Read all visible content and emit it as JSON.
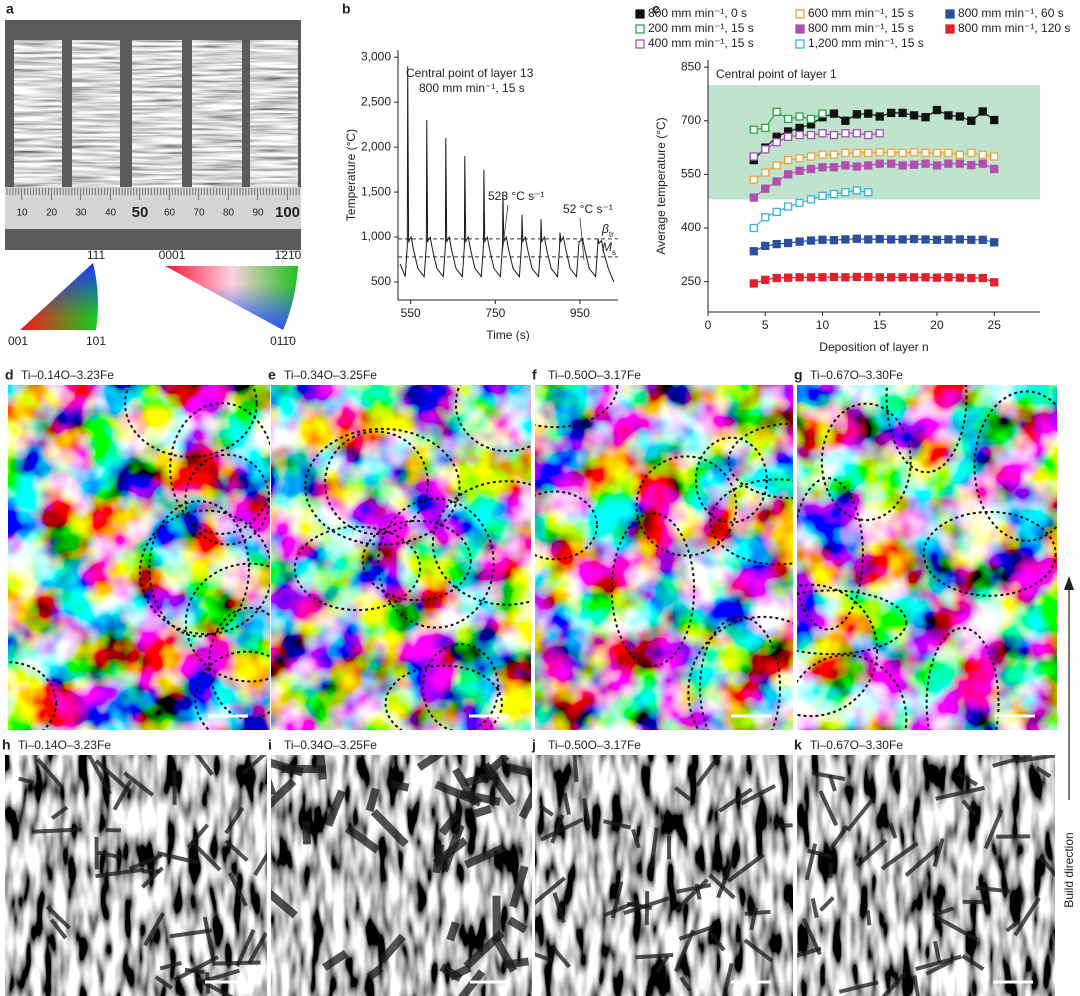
{
  "panel_a": {
    "label": "a",
    "ruler_numbers": [
      10,
      20,
      30,
      40,
      50,
      60,
      70,
      80,
      90,
      100
    ],
    "ipf_cubic": [
      "111",
      "001",
      "101"
    ],
    "ipf_hex": [
      "0001",
      "1̄21̄0",
      "011̄0"
    ]
  },
  "chart_data": [
    {
      "type": "line",
      "label": "b",
      "xlabel": "Time (s)",
      "ylabel": "Temperature (°C)",
      "color": "#1a1a1a",
      "xlim": [
        520,
        1040
      ],
      "xticks": [
        550,
        750,
        950
      ],
      "ylim": [
        300,
        3080
      ],
      "yticks": [
        500,
        {
          "value": 1000,
          "label": "1,000"
        },
        {
          "value": 1500,
          "label": "1,500"
        },
        {
          "value": 2000,
          "label": "2,000"
        },
        {
          "value": 2500,
          "label": "2,500"
        },
        {
          "value": 3000,
          "label": "3,000"
        }
      ],
      "annotations": [
        "Central point of layer 13",
        "800 mm min⁻¹, 15 s",
        "523 °C s⁻¹",
        "52 °C s⁻¹"
      ],
      "hlines": [
        {
          "value": 980,
          "symbol": "β",
          "subscript": "tr"
        },
        {
          "value": 780,
          "symbol": "M",
          "subscript": "s"
        }
      ],
      "x": [
        525,
        537,
        542,
        543,
        545,
        551,
        557,
        567,
        582,
        587,
        588,
        590,
        596,
        602,
        612,
        627,
        632,
        633,
        635,
        641,
        647,
        657,
        672,
        677,
        678,
        680,
        686,
        692,
        702,
        717,
        722,
        723,
        725,
        731,
        737,
        747,
        762,
        767,
        768,
        770,
        776,
        782,
        792,
        807,
        812,
        813,
        815,
        821,
        827,
        837,
        852,
        857,
        858,
        860,
        866,
        872,
        882,
        897,
        902,
        903,
        905,
        911,
        917,
        927,
        942,
        947,
        948,
        950,
        956,
        962,
        972,
        987,
        992,
        993,
        995,
        1001,
        1007,
        1017,
        1030
      ],
      "values": [
        700,
        560,
        900,
        2900,
        950,
        1000,
        850,
        650,
        560,
        900,
        2300,
        950,
        1000,
        850,
        650,
        560,
        900,
        2100,
        950,
        1000,
        850,
        650,
        560,
        900,
        1900,
        950,
        1000,
        850,
        650,
        560,
        900,
        1750,
        950,
        1000,
        850,
        650,
        560,
        900,
        1500,
        950,
        1000,
        850,
        650,
        560,
        900,
        1250,
        950,
        1000,
        850,
        650,
        560,
        900,
        1200,
        950,
        1000,
        850,
        650,
        560,
        900,
        1050,
        950,
        1000,
        850,
        650,
        560,
        900,
        950,
        950,
        980,
        850,
        650,
        560,
        900,
        980,
        930,
        960,
        820,
        650,
        500
      ]
    },
    {
      "type": "scatter",
      "label": "c",
      "xlabel": "Deposition of layer n",
      "ylabel": "Average temperature (°C)",
      "annotation": "Central point of layer 1",
      "shaded_range": [
        480,
        800
      ],
      "shade_color": "#bfe3cd",
      "xlim": [
        0,
        29
      ],
      "xticks": [
        0,
        5,
        10,
        15,
        20,
        25
      ],
      "ylim": [
        165,
        870
      ],
      "yticks": [
        250,
        400,
        550,
        700,
        850
      ],
      "series": [
        {
          "name": "800 mm min⁻¹, 0 s",
          "color": "#111111",
          "filled": true,
          "x": [
            4,
            5,
            6,
            7,
            8,
            9,
            10,
            11,
            12,
            13,
            14,
            15,
            16,
            17,
            18,
            19,
            20,
            21,
            22,
            23,
            24,
            25
          ],
          "values": [
            590,
            625,
            655,
            670,
            680,
            690,
            710,
            720,
            700,
            718,
            720,
            712,
            722,
            722,
            715,
            710,
            730,
            715,
            712,
            700,
            726,
            702
          ]
        },
        {
          "name": "200 mm min⁻¹, 15 s",
          "color": "#2da44e",
          "filled": false,
          "x": [
            4,
            5,
            6,
            7,
            8,
            9,
            10
          ],
          "values": [
            675,
            680,
            725,
            705,
            712,
            705,
            720
          ]
        },
        {
          "name": "400 mm min⁻¹, 15 s",
          "color": "#a054b0",
          "filled": false,
          "x": [
            4,
            5,
            6,
            7,
            8,
            9,
            10,
            11,
            12,
            13,
            14,
            15
          ],
          "values": [
            600,
            620,
            640,
            655,
            660,
            660,
            665,
            660,
            665,
            665,
            660,
            665
          ]
        },
        {
          "name": "600 mm min⁻¹, 15 s",
          "color": "#eea43a",
          "filled": false,
          "x": [
            4,
            5,
            6,
            7,
            8,
            9,
            10,
            11,
            12,
            13,
            14,
            15,
            16,
            17,
            18,
            19,
            20,
            21,
            22,
            23,
            24,
            25
          ],
          "values": [
            535,
            555,
            575,
            590,
            595,
            600,
            605,
            605,
            610,
            610,
            610,
            612,
            610,
            610,
            612,
            610,
            610,
            610,
            605,
            610,
            605,
            600
          ]
        },
        {
          "name": "800 mm min⁻¹, 15 s",
          "color": "#b04fb0",
          "filled": true,
          "x": [
            4,
            5,
            6,
            7,
            8,
            9,
            10,
            11,
            12,
            13,
            14,
            15,
            16,
            17,
            18,
            19,
            20,
            21,
            22,
            23,
            24,
            25
          ],
          "values": [
            485,
            510,
            530,
            550,
            560,
            565,
            570,
            570,
            575,
            572,
            575,
            580,
            580,
            575,
            577,
            580,
            575,
            580,
            580,
            576,
            580,
            565
          ]
        },
        {
          "name": "1,200 mm min⁻¹, 15 s",
          "color": "#3ab3d9",
          "filled": false,
          "x": [
            4,
            5,
            6,
            7,
            8,
            9,
            10,
            11,
            12,
            13,
            14
          ],
          "values": [
            400,
            430,
            445,
            460,
            470,
            480,
            490,
            495,
            500,
            505,
            500
          ]
        },
        {
          "name": "800 mm min⁻¹, 60 s",
          "color": "#2c4f9e",
          "filled": true,
          "x": [
            4,
            5,
            6,
            7,
            8,
            9,
            10,
            11,
            12,
            13,
            14,
            15,
            16,
            17,
            18,
            19,
            20,
            21,
            22,
            23,
            24,
            25
          ],
          "values": [
            335,
            350,
            355,
            358,
            362,
            365,
            367,
            366,
            368,
            370,
            368,
            369,
            368,
            368,
            369,
            368,
            367,
            368,
            368,
            367,
            367,
            360
          ]
        },
        {
          "name": "800 mm min⁻¹, 120 s",
          "color": "#e0202a",
          "filled": true,
          "x": [
            4,
            5,
            6,
            7,
            8,
            9,
            10,
            11,
            12,
            13,
            14,
            15,
            16,
            17,
            18,
            19,
            20,
            21,
            22,
            23,
            24,
            25
          ],
          "values": [
            245,
            255,
            260,
            261,
            262,
            262,
            262,
            263,
            262,
            263,
            263,
            262,
            262,
            262,
            262,
            262,
            261,
            262,
            261,
            260,
            260,
            248
          ]
        }
      ]
    }
  ],
  "micrographs": [
    {
      "label": "d",
      "title": "Ti–0.14O–3.23Fe"
    },
    {
      "label": "e",
      "title": "Ti–0.34O–3.25Fe"
    },
    {
      "label": "f",
      "title": "Ti–0.50O–3.17Fe"
    },
    {
      "label": "g",
      "title": "Ti–0.67O–3.30Fe"
    },
    {
      "label": "h",
      "title": "Ti–0.14O–3.23Fe"
    },
    {
      "label": "i",
      "title": "Ti–0.34O–3.25Fe"
    },
    {
      "label": "j",
      "title": "Ti–0.50O–3.17Fe"
    },
    {
      "label": "k",
      "title": "Ti–0.67O–3.30Fe"
    }
  ],
  "build_direction": "Build direction"
}
